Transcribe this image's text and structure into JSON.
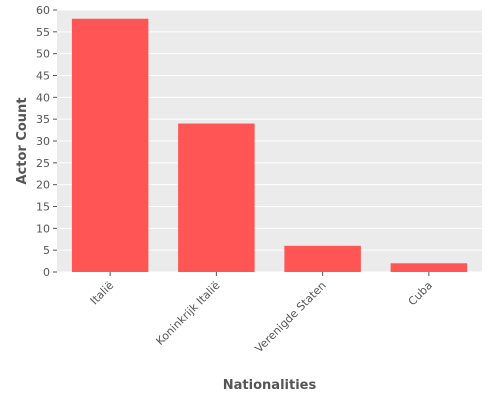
{
  "chart_data": {
    "type": "bar",
    "title": "",
    "xlabel": "Nationalities",
    "ylabel": "Actor Count",
    "categories": [
      "Italië",
      "Koninkrijk Italië",
      "Verenigde Staten",
      "Cuba"
    ],
    "values": [
      58,
      34,
      6,
      2
    ],
    "ylim": [
      0,
      60
    ],
    "yticks": [
      0,
      5,
      10,
      15,
      20,
      25,
      30,
      35,
      40,
      45,
      50,
      55,
      60
    ],
    "grid": true,
    "legend": "none",
    "colors": {
      "bar": "#ff5555",
      "plot_background": "#ebebeb",
      "grid": "#ffffff"
    }
  }
}
